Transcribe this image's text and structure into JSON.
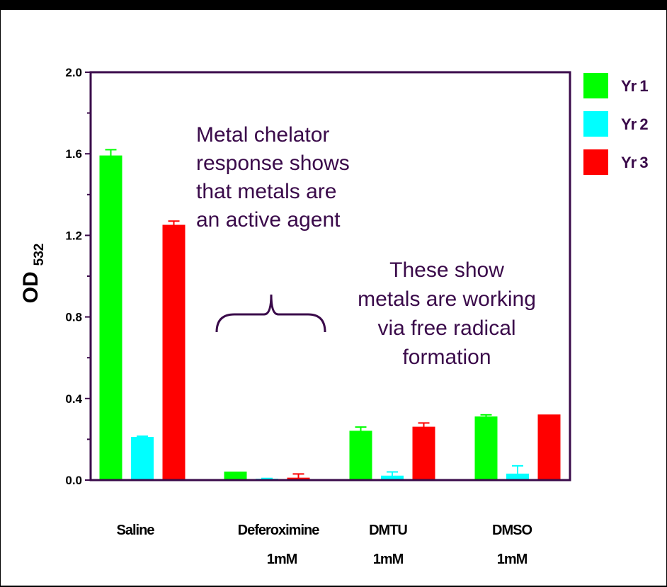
{
  "chart_data": {
    "type": "bar",
    "ylabel": "OD",
    "ylabel_subscript": "532",
    "ylim": [
      0,
      2.0
    ],
    "yticks": [
      "0.0",
      "0.4",
      "0.8",
      "1.2",
      "1.6",
      "2.0"
    ],
    "ytick_values": [
      0,
      0.4,
      0.8,
      1.2,
      1.6,
      2.0
    ],
    "categories": [
      {
        "line1": "Saline",
        "line2": ""
      },
      {
        "line1": "Deferoximine",
        "line2": "1mM"
      },
      {
        "line1": "DMTU",
        "line2": "1mM"
      },
      {
        "line1": "DMSO",
        "line2": "1mM"
      }
    ],
    "series": [
      {
        "name": "Yr 1",
        "color": "#00ff00",
        "values": [
          1.59,
          0.04,
          0.24,
          0.31
        ],
        "errors": [
          0.03,
          0.0,
          0.02,
          0.01
        ]
      },
      {
        "name": "Yr 2",
        "color": "#00ffff",
        "values": [
          0.21,
          0.005,
          0.02,
          0.03
        ],
        "errors": [
          0.005,
          0.003,
          0.02,
          0.04
        ]
      },
      {
        "name": "Yr 3",
        "color": "#ff0000",
        "values": [
          1.25,
          0.01,
          0.26,
          0.32
        ],
        "errors": [
          0.02,
          0.02,
          0.02,
          0.0
        ]
      }
    ],
    "legend_placement": "top-right",
    "annotations": [
      {
        "id": "chelator-note",
        "lines": [
          "Metal chelator",
          "response shows",
          "that metals are",
          "an active agent"
        ]
      },
      {
        "id": "radical-note",
        "lines": [
          "These show",
          "metals are working",
          "via free radical",
          "formation"
        ]
      }
    ]
  }
}
